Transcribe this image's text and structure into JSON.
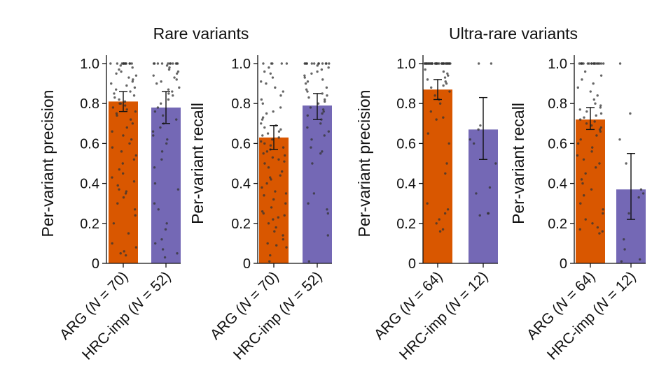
{
  "group_titles": [
    "Rare variants",
    "Ultra-rare variants"
  ],
  "colors": {
    "ARG": "#D95700",
    "HRC-imp": "#7468B5",
    "points": "#333333",
    "axis": "#111111"
  },
  "chart_data": [
    {
      "type": "bar",
      "group": "Rare variants",
      "ylabel": "Per-variant precision",
      "ylim": [
        0,
        1
      ],
      "yticks": [
        0,
        0.2,
        0.4,
        0.6,
        0.8,
        1.0
      ],
      "ytick_labels": [
        "0",
        "0.2",
        "0.4",
        "0.6",
        "0.8",
        "1.0"
      ],
      "categories": [
        "ARG (N = 70)",
        "HRC-imp (N = 52)"
      ],
      "category_parts": [
        [
          "ARG (",
          "N",
          " = 70)"
        ],
        [
          "HRC-imp (",
          "N",
          " = 52)"
        ]
      ],
      "values": [
        0.81,
        0.78
      ],
      "error_low": [
        0.76,
        0.7
      ],
      "error_high": [
        0.86,
        0.86
      ],
      "points": [
        [
          1,
          1,
          1,
          1,
          1,
          1,
          1,
          1,
          1,
          1,
          1,
          1,
          0.99,
          0.98,
          0.97,
          0.96,
          0.95,
          0.94,
          0.93,
          0.92,
          0.91,
          0.9,
          0.89,
          0.88,
          0.87,
          0.86,
          0.85,
          0.84,
          0.83,
          0.82,
          0.81,
          0.8,
          0.8,
          0.79,
          0.78,
          0.77,
          0.76,
          0.75,
          0.74,
          0.72,
          0.7,
          0.68,
          0.66,
          0.64,
          0.62,
          0.6,
          0.58,
          0.56,
          0.54,
          0.52,
          0.5,
          0.47,
          0.45,
          0.43,
          0.41,
          0.39,
          0.37,
          0.36,
          0.35,
          0.33,
          0.3,
          0.27,
          0.24,
          0.2,
          0.15,
          0.1,
          0.08,
          0.06,
          0.05,
          0.04
        ],
        [
          1,
          1,
          1,
          1,
          1,
          1,
          1,
          1,
          1,
          1,
          1,
          0.99,
          0.98,
          0.97,
          0.96,
          0.95,
          0.94,
          0.93,
          0.92,
          0.91,
          0.9,
          0.88,
          0.87,
          0.86,
          0.85,
          0.84,
          0.82,
          0.8,
          0.78,
          0.76,
          0.74,
          0.72,
          0.7,
          0.68,
          0.66,
          0.64,
          0.62,
          0.6,
          0.56,
          0.52,
          0.48,
          0.4,
          0.37,
          0.3,
          0.27,
          0.2,
          0.17,
          0.12,
          0.1,
          0.07,
          0.05,
          0.03
        ]
      ]
    },
    {
      "type": "bar",
      "group": "Rare variants",
      "ylabel": "Per-variant recall",
      "ylim": [
        0,
        1
      ],
      "yticks": [
        0,
        0.2,
        0.4,
        0.6,
        0.8,
        1.0
      ],
      "ytick_labels": [
        "0",
        "0.2",
        "0.4",
        "0.6",
        "0.8",
        "1.0"
      ],
      "categories": [
        "ARG (N = 70)",
        "HRC-imp (N = 52)"
      ],
      "category_parts": [
        [
          "ARG (",
          "N",
          " = 70)"
        ],
        [
          "HRC-imp (",
          "N",
          " = 52)"
        ]
      ],
      "values": [
        0.63,
        0.79
      ],
      "error_low": [
        0.57,
        0.72
      ],
      "error_high": [
        0.69,
        0.85
      ],
      "points": [
        [
          1,
          1,
          1,
          1,
          1,
          0.98,
          0.96,
          0.95,
          0.93,
          0.91,
          0.9,
          0.88,
          0.86,
          0.84,
          0.82,
          0.8,
          0.78,
          0.76,
          0.75,
          0.73,
          0.72,
          0.7,
          0.69,
          0.68,
          0.67,
          0.66,
          0.65,
          0.64,
          0.63,
          0.62,
          0.61,
          0.6,
          0.59,
          0.58,
          0.57,
          0.56,
          0.55,
          0.54,
          0.53,
          0.52,
          0.51,
          0.5,
          0.48,
          0.46,
          0.44,
          0.43,
          0.42,
          0.4,
          0.38,
          0.36,
          0.35,
          0.34,
          0.32,
          0.3,
          0.28,
          0.26,
          0.25,
          0.24,
          0.23,
          0.22,
          0.2,
          0.18,
          0.16,
          0.14,
          0.12,
          0.1,
          0.09,
          0.08,
          0.04,
          0.01
        ],
        [
          1,
          1,
          1,
          1,
          1,
          1,
          1,
          1,
          1,
          1,
          1,
          1,
          0.99,
          0.98,
          0.97,
          0.96,
          0.95,
          0.94,
          0.93,
          0.92,
          0.91,
          0.9,
          0.88,
          0.87,
          0.86,
          0.85,
          0.84,
          0.83,
          0.82,
          0.81,
          0.8,
          0.78,
          0.77,
          0.76,
          0.75,
          0.74,
          0.72,
          0.7,
          0.68,
          0.66,
          0.64,
          0.62,
          0.58,
          0.56,
          0.55,
          0.5,
          0.35,
          0.3,
          0.27,
          0.25,
          0.14,
          0.01
        ]
      ]
    },
    {
      "type": "bar",
      "group": "Ultra-rare variants",
      "ylabel": "Per-variant precision",
      "ylim": [
        0,
        1
      ],
      "yticks": [
        0,
        0.2,
        0.4,
        0.6,
        0.8,
        1.0
      ],
      "ytick_labels": [
        "0",
        "0.2",
        "0.4",
        "0.6",
        "0.8",
        "1.0"
      ],
      "categories": [
        "ARG (N = 64)",
        "HRC-imp (N = 12)"
      ],
      "category_parts": [
        [
          "ARG (",
          "N",
          " = 64)"
        ],
        [
          "HRC-imp (",
          "N",
          " = 12)"
        ]
      ],
      "values": [
        0.87,
        0.67
      ],
      "error_low": [
        0.82,
        0.52
      ],
      "error_high": [
        0.92,
        0.83
      ],
      "points": [
        [
          1,
          1,
          1,
          1,
          1,
          1,
          1,
          1,
          1,
          1,
          1,
          1,
          1,
          1,
          1,
          1,
          1,
          1,
          1,
          1,
          1,
          1,
          1,
          1,
          1,
          1,
          1,
          1,
          1,
          1,
          1,
          1,
          1,
          1,
          1,
          1,
          0.97,
          0.96,
          0.95,
          0.94,
          0.93,
          0.92,
          0.91,
          0.9,
          0.89,
          0.88,
          0.86,
          0.84,
          0.82,
          0.8,
          0.76,
          0.73,
          0.72,
          0.65,
          0.6,
          0.5,
          0.45,
          0.3,
          0.27,
          0.25,
          0.22,
          0.2,
          0.17,
          0.16
        ],
        [
          1,
          1,
          0.69,
          0.67,
          0.62,
          0.6,
          0.5,
          0.38,
          0.35,
          0.25,
          0.25,
          0.24
        ]
      ]
    },
    {
      "type": "bar",
      "group": "Ultra-rare variants",
      "ylabel": "Per-variant recall",
      "ylim": [
        0,
        1
      ],
      "yticks": [
        0,
        0.2,
        0.4,
        0.6,
        0.8,
        1.0
      ],
      "ytick_labels": [
        "0",
        "0.2",
        "0.4",
        "0.6",
        "0.8",
        "1.0"
      ],
      "categories": [
        "ARG (N = 64)",
        "HRC-imp (N = 12)"
      ],
      "category_parts": [
        [
          "ARG (",
          "N",
          " = 64)"
        ],
        [
          "HRC-imp (",
          "N",
          " = 12)"
        ]
      ],
      "values": [
        0.72,
        0.37
      ],
      "error_low": [
        0.67,
        0.22
      ],
      "error_high": [
        0.78,
        0.55
      ],
      "points": [
        [
          1,
          1,
          1,
          1,
          1,
          1,
          1,
          1,
          1,
          1,
          1,
          1,
          1,
          1,
          1,
          1,
          1,
          1,
          0.96,
          0.94,
          0.92,
          0.9,
          0.88,
          0.86,
          0.84,
          0.82,
          0.8,
          0.79,
          0.78,
          0.77,
          0.76,
          0.75,
          0.74,
          0.73,
          0.72,
          0.71,
          0.7,
          0.69,
          0.68,
          0.67,
          0.66,
          0.64,
          0.62,
          0.6,
          0.58,
          0.56,
          0.54,
          0.52,
          0.5,
          0.48,
          0.45,
          0.42,
          0.4,
          0.37,
          0.34,
          0.3,
          0.27,
          0.25,
          0.22,
          0.2,
          0.18,
          0.17,
          0.16,
          0.15
        ],
        [
          1,
          0.75,
          0.62,
          0.5,
          0.37,
          0.35,
          0.33,
          0.25,
          0.12,
          0.07,
          0.02,
          0.01
        ]
      ]
    }
  ]
}
